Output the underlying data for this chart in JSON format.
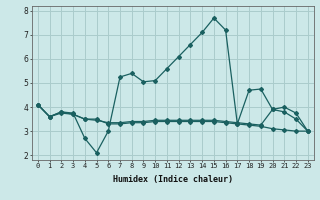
{
  "xlabel": "Humidex (Indice chaleur)",
  "background_color": "#cce8e8",
  "grid_color": "#aacccc",
  "line_color": "#1a6060",
  "x_values": [
    0,
    1,
    2,
    3,
    4,
    5,
    6,
    7,
    8,
    9,
    10,
    11,
    12,
    13,
    14,
    15,
    16,
    17,
    18,
    19,
    20,
    21,
    22,
    23
  ],
  "line1": [
    4.1,
    3.6,
    3.8,
    3.7,
    3.5,
    3.5,
    3.3,
    3.3,
    3.35,
    3.35,
    3.4,
    3.4,
    3.4,
    3.4,
    3.4,
    3.4,
    3.35,
    3.3,
    3.25,
    3.2,
    3.1,
    3.05,
    3.0,
    3.0
  ],
  "line2": [
    4.1,
    3.6,
    3.8,
    3.75,
    2.7,
    2.1,
    3.0,
    5.25,
    5.4,
    5.05,
    5.1,
    5.6,
    6.1,
    6.6,
    7.1,
    7.7,
    7.2,
    3.3,
    4.7,
    4.75,
    3.9,
    3.8,
    3.5,
    3.0
  ],
  "line3": [
    4.1,
    3.6,
    3.75,
    3.7,
    3.5,
    3.45,
    3.35,
    3.35,
    3.4,
    3.4,
    3.45,
    3.45,
    3.45,
    3.45,
    3.45,
    3.45,
    3.4,
    3.35,
    3.3,
    3.25,
    3.9,
    4.0,
    3.75,
    3.0
  ],
  "ylim": [
    1.8,
    8.2
  ],
  "yticks": [
    2,
    3,
    4,
    5,
    6,
    7,
    8
  ],
  "xticks": [
    0,
    1,
    2,
    3,
    4,
    5,
    6,
    7,
    8,
    9,
    10,
    11,
    12,
    13,
    14,
    15,
    16,
    17,
    18,
    19,
    20,
    21,
    22,
    23
  ],
  "xlabel_fontsize": 6.0,
  "tick_fontsize": 5.0
}
